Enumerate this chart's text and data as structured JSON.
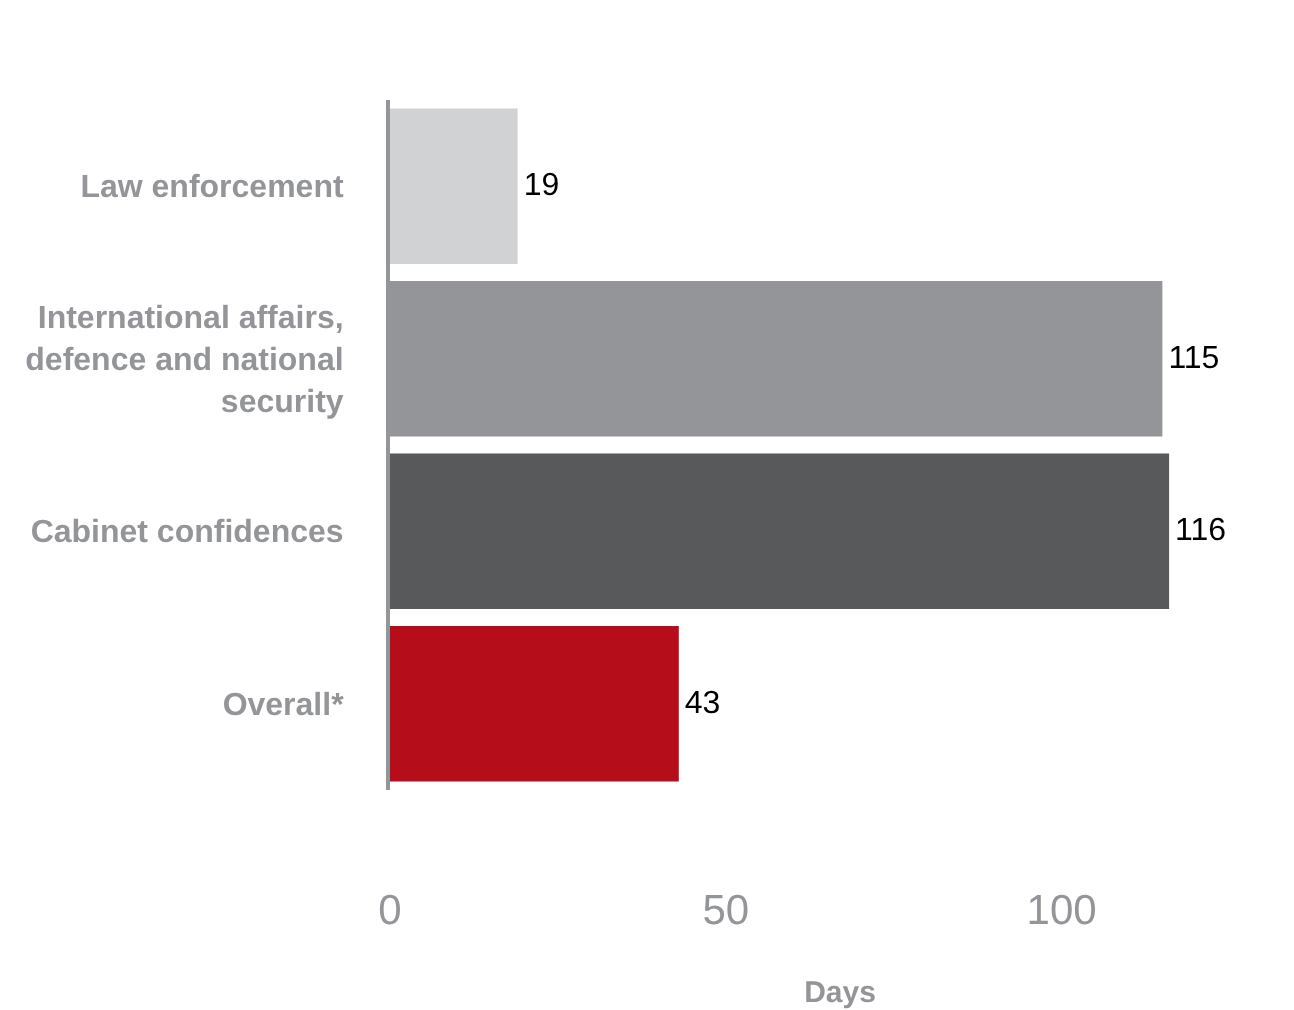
{
  "chart_data": {
    "type": "bar",
    "orientation": "horizontal",
    "xlabel": "Days",
    "categories": [
      "Law enforcement",
      "International affairs, defence and national security",
      "Cabinet confidences",
      "Overall*"
    ],
    "values": [
      19,
      115,
      116,
      43
    ],
    "colors": [
      "#d1d2d4",
      "#939598",
      "#58595b",
      "#b50e1a"
    ],
    "xlim": [
      0,
      134
    ],
    "xticks": [
      0,
      50,
      100
    ],
    "grid": false,
    "legend": false,
    "data_labels": true
  }
}
